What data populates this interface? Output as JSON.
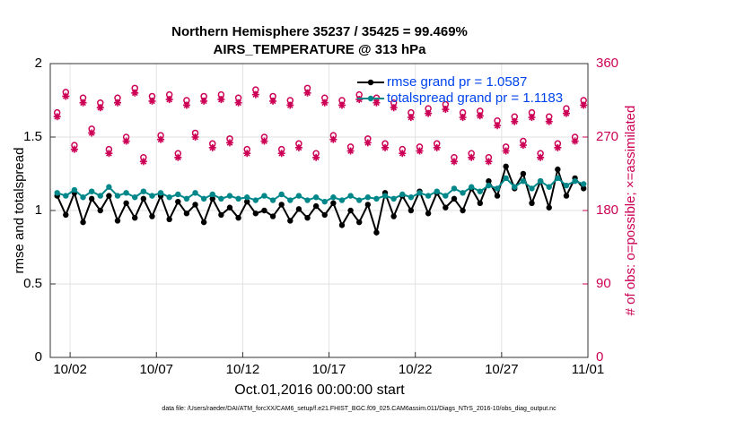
{
  "chart_data": {
    "type": "line",
    "title": "Northern Hemisphere 35237 / 35425 = 99.469%",
    "subtitle": "AIRS_TEMPERATURE @ 313 hPa",
    "x_label": "Oct.01,2016 00:00:00 start",
    "y_label": "rmse and totalspread",
    "y2_label": "# of obs: o=possible; ×=assimilated",
    "footnote": "data file: /Users/raeder/DAI/ATM_forcXX/CAM6_setup/f.e21.FHIST_BGC.f09_025.CAM6assim.011/Diags_NTrS_2016-10/obs_diag_output.nc",
    "xlim": [
      -0.15,
      31
    ],
    "xticks": [
      {
        "value": 1,
        "label": "10/02"
      },
      {
        "value": 6,
        "label": "10/07"
      },
      {
        "value": 11,
        "label": "10/12"
      },
      {
        "value": 16,
        "label": "10/17"
      },
      {
        "value": 21,
        "label": "10/22"
      },
      {
        "value": 26,
        "label": "10/27"
      },
      {
        "value": 31,
        "label": "11/01"
      }
    ],
    "ylim": [
      0,
      2
    ],
    "yticks": [
      0,
      0.5,
      1,
      1.5,
      2
    ],
    "y2lim": [
      0,
      360
    ],
    "y2ticks": [
      0,
      90,
      180,
      270,
      360
    ],
    "grid": true,
    "x": [
      0.25,
      0.75,
      1.25,
      1.75,
      2.25,
      2.75,
      3.25,
      3.75,
      4.25,
      4.75,
      5.25,
      5.75,
      6.25,
      6.75,
      7.25,
      7.75,
      8.25,
      8.75,
      9.25,
      9.75,
      10.25,
      10.75,
      11.25,
      11.75,
      12.25,
      12.75,
      13.25,
      13.75,
      14.25,
      14.75,
      15.25,
      15.75,
      16.25,
      16.75,
      17.25,
      17.75,
      18.25,
      18.75,
      19.25,
      19.75,
      20.25,
      20.75,
      21.25,
      21.75,
      22.25,
      22.75,
      23.25,
      23.75,
      24.25,
      24.75,
      25.25,
      25.75,
      26.25,
      26.75,
      27.25,
      27.75,
      28.25,
      28.75,
      29.25,
      29.75,
      30.25,
      30.75
    ],
    "series": [
      {
        "name": "rmse grand pr = 1.0587",
        "color": "#000000",
        "marker": "dot",
        "values": [
          1.1,
          0.97,
          1.12,
          0.92,
          1.08,
          1.0,
          1.1,
          0.93,
          1.05,
          0.95,
          1.08,
          0.96,
          1.1,
          0.94,
          1.06,
          0.98,
          1.04,
          0.92,
          1.08,
          0.97,
          1.02,
          0.95,
          1.06,
          0.98,
          1.0,
          0.96,
          1.04,
          0.93,
          1.01,
          0.95,
          1.03,
          0.97,
          1.05,
          0.9,
          1.0,
          0.92,
          1.04,
          0.85,
          1.12,
          0.96,
          1.1,
          1.0,
          1.13,
          0.98,
          1.12,
          1.02,
          1.08,
          1.0,
          1.15,
          1.05,
          1.2,
          1.1,
          1.3,
          1.15,
          1.25,
          1.05,
          1.2,
          1.02,
          1.28,
          1.1,
          1.22,
          1.15
        ]
      },
      {
        "name": "totalspread grand pr = 1.1183",
        "color": "#00878a",
        "marker": "dot",
        "values": [
          1.12,
          1.1,
          1.14,
          1.09,
          1.13,
          1.1,
          1.16,
          1.1,
          1.12,
          1.09,
          1.13,
          1.1,
          1.12,
          1.09,
          1.11,
          1.08,
          1.12,
          1.08,
          1.11,
          1.08,
          1.1,
          1.08,
          1.09,
          1.07,
          1.1,
          1.07,
          1.11,
          1.07,
          1.1,
          1.07,
          1.09,
          1.06,
          1.09,
          1.07,
          1.1,
          1.07,
          1.09,
          1.08,
          1.1,
          1.08,
          1.11,
          1.09,
          1.12,
          1.1,
          1.13,
          1.1,
          1.15,
          1.12,
          1.16,
          1.13,
          1.17,
          1.15,
          1.22,
          1.16,
          1.2,
          1.15,
          1.2,
          1.16,
          1.22,
          1.17,
          1.2,
          1.18
        ]
      },
      {
        "color": "#cc0055",
        "marker": "circle",
        "axis": "y2",
        "values": [
          300,
          325,
          260,
          318,
          280,
          312,
          255,
          318,
          270,
          330,
          245,
          320,
          272,
          322,
          250,
          315,
          275,
          320,
          262,
          322,
          268,
          318,
          255,
          328,
          270,
          320,
          255,
          315,
          262,
          330,
          250,
          318,
          272,
          315,
          258,
          322,
          268,
          318,
          262,
          312,
          255,
          300,
          258,
          305,
          262,
          310,
          245,
          300,
          250,
          302,
          245,
          290,
          258,
          295,
          265,
          300,
          250,
          295,
          262,
          305,
          270,
          315
        ]
      },
      {
        "color": "#cc0055",
        "marker": "star",
        "axis": "y2",
        "values": [
          295,
          320,
          255,
          312,
          275,
          306,
          250,
          312,
          265,
          324,
          240,
          314,
          267,
          316,
          245,
          309,
          270,
          314,
          257,
          316,
          263,
          312,
          250,
          322,
          265,
          314,
          250,
          309,
          257,
          324,
          245,
          312,
          267,
          309,
          253,
          316,
          263,
          312,
          257,
          306,
          250,
          294,
          253,
          299,
          257,
          304,
          240,
          294,
          245,
          296,
          240,
          284,
          253,
          289,
          260,
          294,
          245,
          289,
          257,
          299,
          265,
          309
        ]
      }
    ]
  }
}
